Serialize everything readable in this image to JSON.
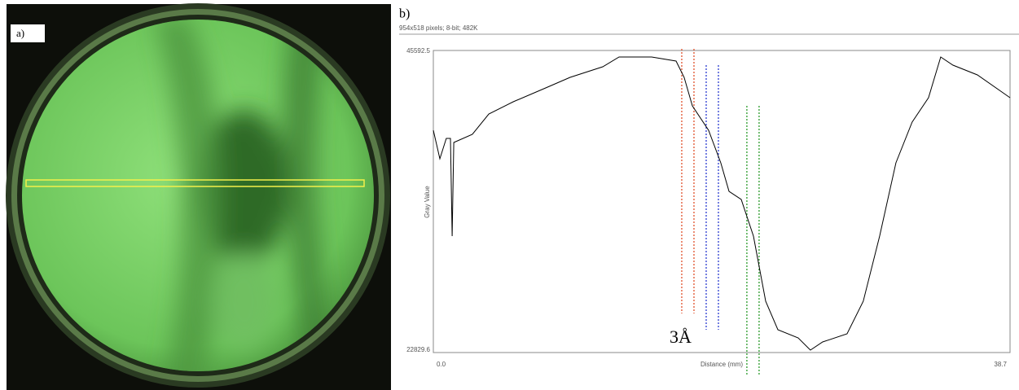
{
  "panel_a_label": "a)",
  "chart_data": {
    "type": "line",
    "panel_label": "b)",
    "subtitle": "954x518 pixels; 8-bit; 482K",
    "xlabel": "Distance (mm)",
    "ylabel": "Gray Value",
    "annotation": "3Å",
    "color": "#000000",
    "x": [
      0,
      0.44,
      0.87,
      1.15,
      1.26,
      1.37,
      2.62,
      3.72,
      5.36,
      7.54,
      9.18,
      11.37,
      12.46,
      14.65,
      16.29,
      16.83,
      17.38,
      18.47,
      19.29,
      19.84,
      20.66,
      21.48,
      22.3,
      23.12,
      24.48,
      25.3,
      26.12,
      27.76,
      28.85,
      29.95,
      31.04,
      32.13,
      33.23,
      34.05,
      34.87,
      36.51,
      38.7
    ],
    "values": [
      39578,
      37407,
      38957,
      38957,
      31513,
      38647,
      39268,
      40818,
      41749,
      42803,
      43610,
      44416,
      45160,
      45160,
      44850,
      43610,
      41439,
      39578,
      37096,
      34925,
      34305,
      31513,
      26551,
      24380,
      23760,
      22830,
      23450,
      24070,
      26551,
      31513,
      37096,
      40198,
      42059,
      45160,
      44540,
      43796,
      42059
    ],
    "reference_lines": [
      {
        "x": 16.67,
        "color": "#e0502a"
      },
      {
        "x": 17.49,
        "color": "#e0502a"
      },
      {
        "x": 18.31,
        "color": "#2a3ad0"
      },
      {
        "x": 19.13,
        "color": "#2a3ad0"
      },
      {
        "x": 21.04,
        "color": "#2a9a2a"
      },
      {
        "x": 21.86,
        "color": "#2a9a2a"
      }
    ],
    "xlim": [
      0,
      38.7
    ],
    "xticks": [
      {
        "value": 0,
        "label": "0.0"
      },
      38.7
    ],
    "ylim": [
      22829.6,
      45592.5
    ],
    "yticks": [
      22829.6,
      45592.5
    ]
  }
}
